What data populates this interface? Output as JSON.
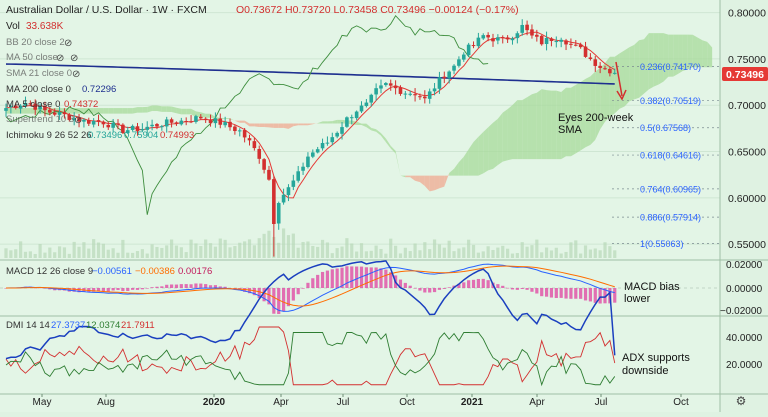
{
  "header": {
    "symbol": "Australian Dollar / U.S. Dollar · 1W · FXCM",
    "ohlc": "O0.73672 H0.73720 L0.73458 C0.73496 −0.00124 (−0.17%)",
    "volume_label": "Vol",
    "volume_value": "33.638K"
  },
  "indicators": {
    "bb": "BB 20 close 2",
    "ma50": "MA 50 close",
    "sma21": "SMA 21 close 0",
    "ma200": "MA 200 close 0",
    "ma200_value": "0.72296",
    "ma5": "MA 5 close 0",
    "ma5_value": "0.74372",
    "supertrend": "Supertrend 10 3",
    "ichimoku": "Ichimoku 9 26 52 26",
    "ichimoku_values": [
      "0.73496",
      "0.75904",
      "0.74993"
    ]
  },
  "macd_panel": {
    "label": "MACD 12 26 close 9",
    "values": [
      "−0.00561",
      "−0.00386",
      "0.00176"
    ],
    "annotation_line1": "MACD bias",
    "annotation_line2": "lower",
    "ticks": [
      "0.02000",
      "0.00000",
      "−0.02000"
    ]
  },
  "dmi_panel": {
    "label": "DMI 14 14",
    "values": [
      "27.3737",
      "12.0374",
      "21.7911"
    ],
    "annotation_line1": "ADX supports",
    "annotation_line2": "downside",
    "ticks": [
      "40.0000",
      "20.0000"
    ]
  },
  "main_annotation": {
    "line1": "Eyes 200-week",
    "line2": "SMA"
  },
  "current_price": "0.73496",
  "fib_labels": [
    "0.236(0.74170)",
    "0.382(0.70519)",
    "0.5(0.67568)",
    "0.618(0.64616)",
    "0.764(0.60965)",
    "0.886(0.57914)",
    "1(0.55063)"
  ],
  "colors": {
    "background": "#dff2e2",
    "bull": "#26a69a",
    "bear": "#d32f2f",
    "ma200": "#1e2f8f",
    "cloud_green": "#a7d99a",
    "cloud_red": "#f0a890",
    "macd_line": "#2962ff",
    "signal_line": "#ff6d00",
    "hist_color": "#e040a0",
    "price_tag": "#e53935"
  },
  "chart_data": {
    "type": "candlestick",
    "y_axis": {
      "ticks": [
        "0.80000",
        "0.75000",
        "0.70000",
        "0.65000",
        "0.60000",
        "0.55000"
      ],
      "range": [
        0.535,
        0.805
      ]
    },
    "x_axis_labels": [
      "May",
      "Aug",
      "2020",
      "Apr",
      "Jul",
      "Oct",
      "2021",
      "Apr",
      "Jul",
      "Oct"
    ],
    "fib_levels": [
      0.7417,
      0.70519,
      0.67568,
      0.64616,
      0.60965,
      0.57914,
      0.55063
    ],
    "ma200_value": 0.72296,
    "last_close": 0.73496,
    "anchors": [
      {
        "t": 0,
        "p": 0.697
      },
      {
        "t": 4,
        "p": 0.703
      },
      {
        "t": 8,
        "p": 0.694
      },
      {
        "t": 12,
        "p": 0.689
      },
      {
        "t": 16,
        "p": 0.683
      },
      {
        "t": 20,
        "p": 0.682
      },
      {
        "t": 24,
        "p": 0.673
      },
      {
        "t": 28,
        "p": 0.675
      },
      {
        "t": 32,
        "p": 0.68
      },
      {
        "t": 36,
        "p": 0.683
      },
      {
        "t": 40,
        "p": 0.687
      },
      {
        "t": 44,
        "p": 0.681
      },
      {
        "t": 48,
        "p": 0.672
      },
      {
        "t": 50,
        "p": 0.66
      },
      {
        "t": 52,
        "p": 0.645
      },
      {
        "t": 54,
        "p": 0.62
      },
      {
        "t": 55,
        "p": 0.575
      },
      {
        "t": 56,
        "p": 0.598
      },
      {
        "t": 58,
        "p": 0.61
      },
      {
        "t": 60,
        "p": 0.625
      },
      {
        "t": 62,
        "p": 0.645
      },
      {
        "t": 64,
        "p": 0.653
      },
      {
        "t": 66,
        "p": 0.66
      },
      {
        "t": 68,
        "p": 0.672
      },
      {
        "t": 70,
        "p": 0.685
      },
      {
        "t": 72,
        "p": 0.695
      },
      {
        "t": 74,
        "p": 0.7
      },
      {
        "t": 76,
        "p": 0.715
      },
      {
        "t": 78,
        "p": 0.722
      },
      {
        "t": 80,
        "p": 0.718
      },
      {
        "t": 82,
        "p": 0.714
      },
      {
        "t": 84,
        "p": 0.713
      },
      {
        "t": 86,
        "p": 0.706
      },
      {
        "t": 88,
        "p": 0.72
      },
      {
        "t": 90,
        "p": 0.733
      },
      {
        "t": 92,
        "p": 0.742
      },
      {
        "t": 94,
        "p": 0.758
      },
      {
        "t": 96,
        "p": 0.765
      },
      {
        "t": 98,
        "p": 0.775
      },
      {
        "t": 100,
        "p": 0.772
      },
      {
        "t": 102,
        "p": 0.77
      },
      {
        "t": 104,
        "p": 0.776
      },
      {
        "t": 106,
        "p": 0.785
      },
      {
        "t": 108,
        "p": 0.774
      },
      {
        "t": 110,
        "p": 0.768
      },
      {
        "t": 112,
        "p": 0.772
      },
      {
        "t": 114,
        "p": 0.774
      },
      {
        "t": 116,
        "p": 0.765
      },
      {
        "t": 118,
        "p": 0.76
      },
      {
        "t": 120,
        "p": 0.75
      },
      {
        "t": 122,
        "p": 0.742
      },
      {
        "t": 124,
        "p": 0.738
      },
      {
        "t": 125,
        "p": 0.73496
      }
    ]
  }
}
